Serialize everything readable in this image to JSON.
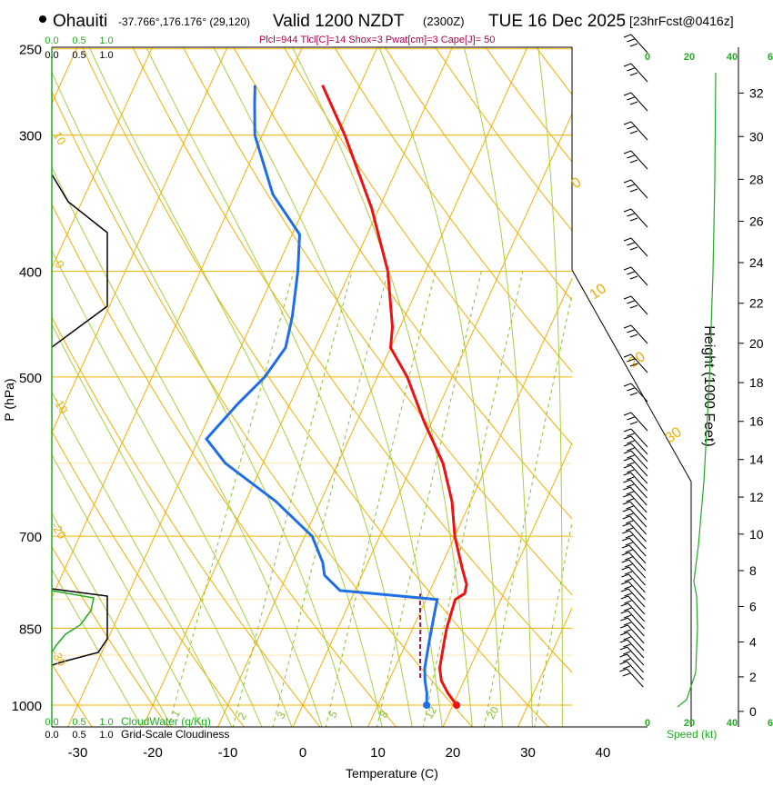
{
  "header": {
    "location": "Ohauiti",
    "coords": "-37.766°,176.176° (29,120)",
    "valid": "Valid 1200 NZDT",
    "utc": "(2300Z)",
    "date": "TUE 16 Dec 2025",
    "forecast": "[23hrFcst@0416z]",
    "params": "Plcl=944 Tlcl[C]=14 Shox=3 Pwat[cm]=3 Cape[J]= 50"
  },
  "colors": {
    "temperature": "#ee1111",
    "dewpoint": "#1e6ee6",
    "parcel": "#8b1a4a",
    "isotherm": "#f0b000",
    "dry_adiabat": "#f0b000",
    "moist_adiabat": "#a8d040",
    "mixing_ratio": "#88c030",
    "green_label": "#22aa22",
    "params_text": "#b0004e"
  },
  "chart_data": {
    "type": "skewt",
    "title": "Ohauiti Valid 1200 NZDT TUE 16 Dec 2025",
    "xlabel": "Temperature (C)",
    "ylabel": "P (hPa)",
    "right_ylabel": "Height (1000 Feet)",
    "x_ticks": [
      -30,
      -20,
      -10,
      0,
      10,
      20,
      30,
      40
    ],
    "x_range": [
      -35,
      45
    ],
    "pressure_ticks": [
      250,
      300,
      400,
      500,
      700,
      850,
      1000
    ],
    "pressure_range": [
      1000,
      250
    ],
    "height_ticks_kft": [
      0,
      2,
      4,
      6,
      8,
      10,
      12,
      14,
      16,
      18,
      20,
      22,
      24,
      26,
      28,
      30,
      32
    ],
    "isotherm_labels": [
      "10",
      "0",
      "-10",
      "-20",
      "-30"
    ],
    "dry_adiabat_labels": [
      "0",
      "10",
      "20",
      "30"
    ],
    "mixing_ratio_labels": [
      "1",
      "2",
      "3",
      "5",
      "8",
      "12",
      "20"
    ],
    "temperature_profile": [
      {
        "p": 1000,
        "t": 20.5
      },
      {
        "p": 975,
        "t": 18.6
      },
      {
        "p": 950,
        "t": 17.0
      },
      {
        "p": 925,
        "t": 16.0
      },
      {
        "p": 900,
        "t": 15.5
      },
      {
        "p": 875,
        "t": 15.0
      },
      {
        "p": 850,
        "t": 14.5
      },
      {
        "p": 825,
        "t": 14.2
      },
      {
        "p": 800,
        "t": 13.9
      },
      {
        "p": 790,
        "t": 14.8
      },
      {
        "p": 775,
        "t": 14.5
      },
      {
        "p": 750,
        "t": 13.0
      },
      {
        "p": 700,
        "t": 10.0
      },
      {
        "p": 650,
        "t": 7.5
      },
      {
        "p": 600,
        "t": 4.0
      },
      {
        "p": 550,
        "t": -1.0
      },
      {
        "p": 500,
        "t": -6.0
      },
      {
        "p": 470,
        "t": -10.0
      },
      {
        "p": 450,
        "t": -11.0
      },
      {
        "p": 400,
        "t": -15.0
      },
      {
        "p": 350,
        "t": -21.0
      },
      {
        "p": 300,
        "t": -29.0
      },
      {
        "p": 270,
        "t": -35.0
      }
    ],
    "dewpoint_profile": [
      {
        "p": 1000,
        "t": 16.5
      },
      {
        "p": 975,
        "t": 15.8
      },
      {
        "p": 950,
        "t": 14.8
      },
      {
        "p": 925,
        "t": 14.0
      },
      {
        "p": 900,
        "t": 13.5
      },
      {
        "p": 875,
        "t": 13.0
      },
      {
        "p": 850,
        "t": 12.5
      },
      {
        "p": 825,
        "t": 12.0
      },
      {
        "p": 800,
        "t": 11.5
      },
      {
        "p": 785,
        "t": -2.0
      },
      {
        "p": 760,
        "t": -5.0
      },
      {
        "p": 740,
        "t": -6.0
      },
      {
        "p": 700,
        "t": -9.0
      },
      {
        "p": 650,
        "t": -16.0
      },
      {
        "p": 600,
        "t": -25.0
      },
      {
        "p": 570,
        "t": -29.0
      },
      {
        "p": 530,
        "t": -27.0
      },
      {
        "p": 500,
        "t": -25.0
      },
      {
        "p": 470,
        "t": -24.0
      },
      {
        "p": 440,
        "t": -25.0
      },
      {
        "p": 400,
        "t": -27.0
      },
      {
        "p": 370,
        "t": -29.0
      },
      {
        "p": 340,
        "t": -35.0
      },
      {
        "p": 300,
        "t": -41.0
      },
      {
        "p": 280,
        "t": -43.0
      },
      {
        "p": 270,
        "t": -44.0
      }
    ],
    "parcel_profile": [
      {
        "p": 944,
        "t": 14.0
      },
      {
        "p": 900,
        "t": 12.6
      },
      {
        "p": 850,
        "t": 11.0
      },
      {
        "p": 800,
        "t": 9.2
      },
      {
        "p": 790,
        "t": 8.9
      }
    ],
    "cloudiness_axis": [
      "0.0",
      "0.5",
      "1.0"
    ],
    "cloudwater_axis": [
      "0.0",
      "0.5",
      "1.0"
    ],
    "cloudwater_label": "CloudWater (g/Kg)",
    "cloudiness_label": "Grid-Scale Cloudiness",
    "speed_axis_labels": [
      "0",
      "20",
      "40",
      "6"
    ],
    "speed_label": "Speed (kt)"
  }
}
